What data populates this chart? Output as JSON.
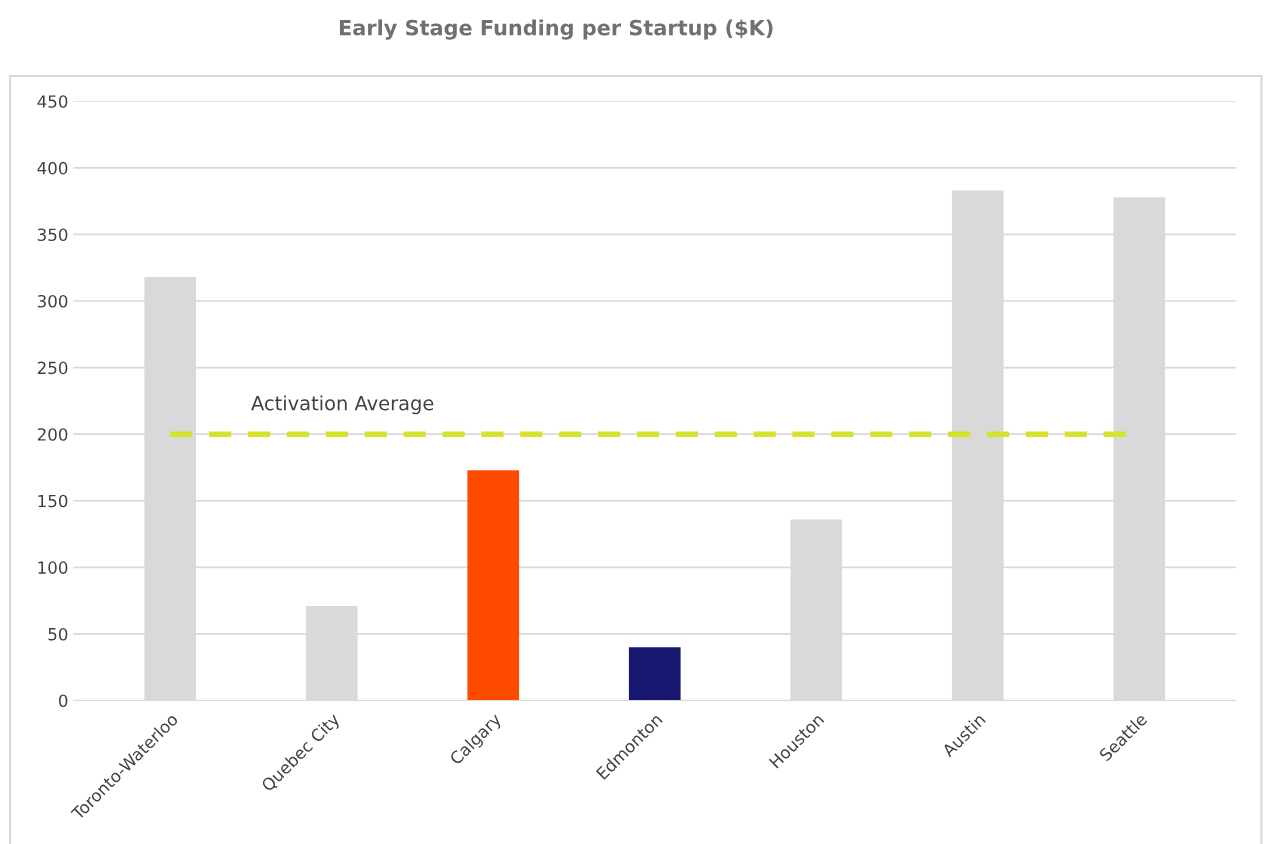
{
  "chart_data": {
    "type": "bar",
    "title": "Early Stage Funding per Startup ($K)",
    "categories": [
      "Toronto-Waterloo",
      "Quebec City",
      "Calgary",
      "Edmonton",
      "Houston",
      "Austin",
      "Seattle"
    ],
    "values": [
      318,
      71,
      173,
      40,
      136,
      383,
      378
    ],
    "colors": [
      "#d9d9d9",
      "#d9d9d9",
      "#ff4b00",
      "#171770",
      "#d9d9d9",
      "#d9d9d9",
      "#d9d9d9"
    ],
    "ylim": [
      0,
      450
    ],
    "yticks": [
      0,
      50,
      100,
      150,
      200,
      250,
      300,
      350,
      400,
      450
    ],
    "grid": "y",
    "ref_lines": [
      {
        "axis": "y",
        "value": 200,
        "label": "Activation Average",
        "color": "#d7e32b",
        "line_style": "dashed"
      }
    ]
  }
}
